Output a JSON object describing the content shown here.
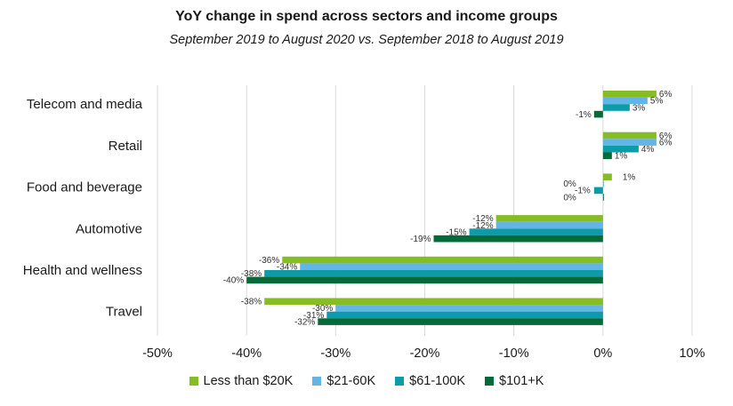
{
  "chart_data": {
    "type": "bar",
    "orientation": "horizontal",
    "title": "YoY change in spend across sectors and income groups",
    "subtitle": "September 2019 to August 2020 vs. September 2018 to August 2019",
    "categories": [
      "Telecom and media",
      "Retail",
      "Food and beverage",
      "Automotive",
      "Health and wellness",
      "Travel"
    ],
    "series": [
      {
        "name": "Less than $20K",
        "color": "#86bc25",
        "values": [
          6,
          6,
          1,
          -12,
          -36,
          -38
        ]
      },
      {
        "name": "$21-60K",
        "color": "#62b5e5",
        "values": [
          5,
          6,
          0,
          -12,
          -34,
          -30
        ]
      },
      {
        "name": "$61-100K",
        "color": "#0d9ba8",
        "values": [
          3,
          4,
          -1,
          -15,
          -38,
          -31
        ]
      },
      {
        "name": "$101+K",
        "color": "#046a38",
        "values": [
          -1,
          1,
          0,
          -19,
          -40,
          -32
        ]
      }
    ],
    "value_labels": [
      [
        "6%",
        "5%",
        "3%",
        "-1%"
      ],
      [
        "6%",
        "6%",
        "4%",
        "1%"
      ],
      [
        "1%",
        "0%",
        "-1%",
        "0%"
      ],
      [
        "-12%",
        "-12%",
        "-15%",
        "-19%"
      ],
      [
        "-36%",
        "-34%",
        "-38%",
        "-40%"
      ],
      [
        "-38%",
        "-30%",
        "-31%",
        "-32%"
      ]
    ],
    "xlim": [
      -50,
      10
    ],
    "xticks": [
      -50,
      -40,
      -30,
      -20,
      -10,
      0,
      10
    ],
    "xtick_labels": [
      "-50%",
      "-40%",
      "-30%",
      "-20%",
      "-10%",
      "0%",
      "10%"
    ],
    "grid": "vertical",
    "legend_position": "bottom"
  }
}
